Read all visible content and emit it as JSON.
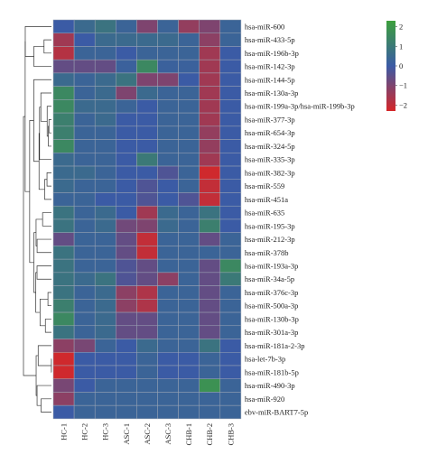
{
  "chart_data": {
    "type": "heatmap",
    "title": "",
    "xlabel": "",
    "ylabel": "",
    "columns": [
      "HC-1",
      "HC-2",
      "HC-3",
      "ASC-1",
      "ASC-2",
      "ASC-3",
      "CHB-1",
      "CHB-2",
      "CHB-3"
    ],
    "rows": [
      "hsa-miR-600",
      "hsa-miR-433-5p",
      "hsa-miR-196b-3p",
      "hsa-miR-142-3p",
      "hsa-miR-144-5p",
      "hsa-miR-130a-3p",
      "hsa-miR-199a-3p/hsa-miR-199b-3p",
      "hsa-miR-377-3p",
      "hsa-miR-654-3p",
      "hsa-miR-324-5p",
      "hsa-miR-335-3p",
      "hsa-miR-382-3p",
      "hsa-miR-559",
      "hsa-miR-451a",
      "hsa-miR-635",
      "hsa-miR-195-3p",
      "hsa-miR-212-3p",
      "hsa-miR-378b",
      "hsa-miR-193a-3p",
      "hsa-miR-34a-5p",
      "hsa-miR-376c-3p",
      "hsa-miR-500a-3p",
      "hsa-miR-130b-3p",
      "hsa-miR-301a-3p",
      "hsa-miR-181a-2-3p",
      "hsa-let-7b-3p",
      "hsa-miR-181b-5p",
      "hsa-miR-490-3p",
      "hsa-miR-920",
      "ebv-miR-BART7-5p"
    ],
    "values": [
      [
        0.0,
        0.5,
        0.8,
        0.3,
        -1.0,
        0.3,
        -1.3,
        -1.0,
        0.3
      ],
      [
        -1.5,
        0.0,
        0.5,
        0.5,
        0.5,
        0.5,
        0.3,
        -1.2,
        0.3
      ],
      [
        -1.8,
        0.3,
        0.3,
        0.0,
        0.3,
        0.3,
        0.3,
        -1.5,
        0.0
      ],
      [
        -0.6,
        -0.6,
        -0.6,
        0.2,
        1.5,
        0.2,
        0.2,
        -1.5,
        0.0
      ],
      [
        0.5,
        0.3,
        0.5,
        0.8,
        -1.0,
        -1.0,
        0.0,
        -1.5,
        0.0
      ],
      [
        1.5,
        0.3,
        0.5,
        -1.0,
        0.5,
        0.3,
        0.3,
        -1.5,
        0.0
      ],
      [
        1.5,
        0.5,
        0.5,
        0.3,
        0.0,
        0.3,
        0.3,
        -1.5,
        0.0
      ],
      [
        1.2,
        0.3,
        0.5,
        0.0,
        0.0,
        0.3,
        0.3,
        -1.5,
        0.0
      ],
      [
        1.2,
        0.3,
        0.3,
        0.0,
        0.0,
        0.3,
        0.3,
        -1.3,
        0.0
      ],
      [
        1.5,
        0.3,
        0.3,
        0.0,
        0.0,
        0.3,
        0.3,
        -1.3,
        0.0
      ],
      [
        0.5,
        0.3,
        0.3,
        0.0,
        1.0,
        0.3,
        0.3,
        -1.5,
        0.0
      ],
      [
        0.5,
        0.5,
        0.3,
        0.0,
        0.0,
        -0.3,
        0.3,
        -2.2,
        0.0
      ],
      [
        0.5,
        0.3,
        0.3,
        0.0,
        -0.3,
        0.0,
        0.3,
        -2.0,
        0.0
      ],
      [
        0.3,
        0.3,
        0.0,
        0.0,
        -0.3,
        0.0,
        -0.3,
        -2.0,
        0.0
      ],
      [
        0.8,
        0.3,
        0.5,
        0.0,
        -1.5,
        0.5,
        0.3,
        0.8,
        0.0
      ],
      [
        0.8,
        0.3,
        0.5,
        -0.8,
        -1.0,
        0.5,
        0.3,
        1.2,
        0.0
      ],
      [
        -0.6,
        0.3,
        0.3,
        -0.6,
        -2.0,
        0.3,
        0.3,
        -0.6,
        0.3
      ],
      [
        0.8,
        0.3,
        0.3,
        -0.6,
        -2.0,
        0.3,
        0.3,
        0.3,
        0.3
      ],
      [
        0.8,
        0.3,
        0.3,
        -0.3,
        -0.6,
        0.3,
        0.3,
        -0.6,
        1.5
      ],
      [
        0.8,
        0.5,
        0.8,
        -0.3,
        -0.6,
        -1.2,
        0.3,
        -0.6,
        1.0
      ],
      [
        0.8,
        0.3,
        0.5,
        -1.2,
        -1.7,
        0.3,
        0.3,
        -0.6,
        0.3
      ],
      [
        1.2,
        0.3,
        0.5,
        -1.2,
        -1.7,
        0.3,
        0.3,
        -0.6,
        0.3
      ],
      [
        1.5,
        0.3,
        0.5,
        -0.6,
        -0.6,
        0.3,
        0.3,
        -0.6,
        0.3
      ],
      [
        0.8,
        0.3,
        0.5,
        -0.6,
        -0.6,
        0.3,
        0.3,
        -0.6,
        0.3
      ],
      [
        -1.2,
        -0.9,
        0.3,
        0.0,
        0.5,
        0.3,
        0.3,
        0.8,
        0.0
      ],
      [
        -2.2,
        0.0,
        0.0,
        0.0,
        0.3,
        0.0,
        0.0,
        0.3,
        0.0
      ],
      [
        -2.2,
        0.0,
        0.0,
        0.0,
        0.3,
        0.0,
        0.0,
        0.3,
        0.0
      ],
      [
        -0.9,
        0.0,
        0.3,
        0.3,
        0.3,
        0.3,
        0.3,
        1.8,
        0.3
      ],
      [
        -1.2,
        0.3,
        0.3,
        0.3,
        0.3,
        0.3,
        0.3,
        0.3,
        0.3
      ],
      [
        0.0,
        0.3,
        0.3,
        0.3,
        0.3,
        0.3,
        0.3,
        0.3,
        0.3
      ]
    ],
    "colorbar": {
      "ticks": [
        2,
        1,
        0,
        -1,
        -2
      ],
      "tick_labels": [
        "2",
        "1",
        "0",
        "−1",
        "−2"
      ],
      "range": [
        -2.3,
        2.3
      ],
      "colors": {
        "low": "#d62728",
        "mid": "#3b5ba5",
        "high": "#3ca03c"
      }
    },
    "legend_position": "top-right",
    "grid": false
  }
}
